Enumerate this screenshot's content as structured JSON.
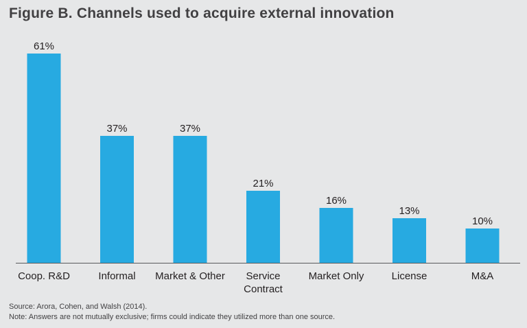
{
  "chart_data": {
    "type": "bar",
    "title": "Figure B. Channels used to acquire external innovation",
    "categories": [
      [
        "Coop. R&D"
      ],
      [
        "Informal"
      ],
      [
        "Market & Other"
      ],
      [
        "Service",
        "Contract"
      ],
      [
        "Market Only"
      ],
      [
        "License"
      ],
      [
        "M&A"
      ]
    ],
    "values": [
      61,
      37,
      37,
      21,
      16,
      13,
      10
    ],
    "value_labels": [
      "61%",
      "37%",
      "37%",
      "21%",
      "16%",
      "13%",
      "10%"
    ],
    "xlabel": "",
    "ylabel": "",
    "ylim": [
      0,
      61
    ],
    "grid": false,
    "bar_color": "#27aae1",
    "axis_color": "#58595b"
  },
  "footer": {
    "source": "Source: Arora, Cohen, and Walsh (2014).",
    "note": "Note: Answers are not mutually exclusive; firms could indicate they utilized more than one source."
  }
}
